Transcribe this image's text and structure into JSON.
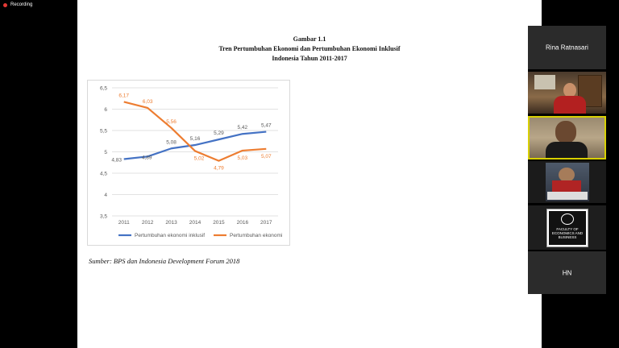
{
  "recording": {
    "label": "Recording"
  },
  "slide": {
    "title_line1": "Gambar 1.1",
    "title_line2": "Tren Pertumbuhan Ekonomi dan Pertumbuhan Ekonomi Inklusif",
    "title_line3": "Indonesia  Tahun 2011-2017",
    "source": "Sumber: BPS dan Indonesia Development Forum 2018"
  },
  "chart_data": {
    "type": "line",
    "x": [
      "2011",
      "2012",
      "2013",
      "2014",
      "2015",
      "2016",
      "2017"
    ],
    "ylim": [
      3.5,
      6.5
    ],
    "yticks": [
      "3,5",
      "4",
      "4,5",
      "5",
      "5,5",
      "6",
      "6,5"
    ],
    "grid": true,
    "legend_position": "bottom",
    "series": [
      {
        "name": "Pertumbuhan ekonomi inklusif",
        "color": "#4472c4",
        "values": [
          4.83,
          4.89,
          5.08,
          5.16,
          5.29,
          5.42,
          5.47
        ],
        "labels": [
          "4,83",
          "4,89",
          "5,08",
          "5,16",
          "5,29",
          "5,42",
          "5,47"
        ]
      },
      {
        "name": "Pertumbuhan ekonomi",
        "color": "#ed7d31",
        "values": [
          6.17,
          6.03,
          5.56,
          5.02,
          4.79,
          5.03,
          5.07
        ],
        "labels": [
          "6,17",
          "6,03",
          "5,56",
          "5,02",
          "4,79",
          "5,03",
          "5,07"
        ]
      }
    ]
  },
  "participants": [
    {
      "name": "Rina Ratnasari",
      "type": "name"
    },
    {
      "name": "",
      "type": "video"
    },
    {
      "name": "",
      "type": "video",
      "active": true
    },
    {
      "name": "",
      "type": "video"
    },
    {
      "name": "",
      "type": "logo",
      "logo_text": "FACULTY OF ECONOMICS AND BUSINESS"
    },
    {
      "name": "HN",
      "type": "name"
    }
  ]
}
